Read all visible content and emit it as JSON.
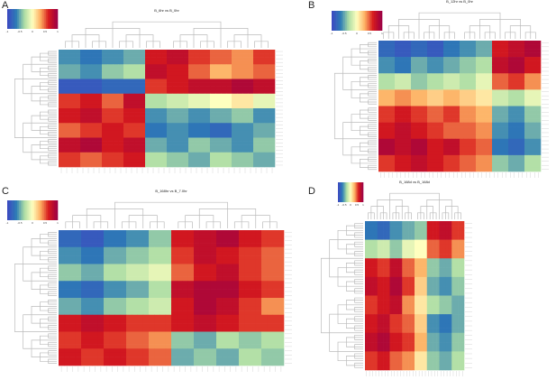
{
  "chart_data": [
    {
      "type": "heatmap",
      "panel": "A",
      "title": "B_6hr vs B_0hr",
      "color_scale": [
        "#3b4cc0",
        "#2c7bb6",
        "#abdda4",
        "#ffffbf",
        "#fdae61",
        "#d7191c",
        "#9e0142"
      ],
      "legend_ticks": [
        "-1",
        "-0.5",
        "0",
        "0.5",
        "1"
      ],
      "value_range": [
        -1,
        1
      ],
      "dendrograms": "rows-left, columns-top",
      "matrix": [
        [
          -0.6,
          -0.7,
          -0.6,
          -0.5,
          0.7,
          0.8,
          0.6,
          0.5,
          0.4,
          0.6
        ],
        [
          -0.5,
          -0.6,
          -0.4,
          -0.3,
          0.8,
          0.7,
          0.5,
          0.3,
          0.4,
          0.5
        ],
        [
          -0.9,
          -0.9,
          -0.8,
          -0.8,
          0.6,
          0.7,
          0.8,
          0.8,
          0.9,
          0.8
        ],
        [
          0.6,
          0.7,
          0.5,
          0.8,
          -0.3,
          -0.2,
          -0.1,
          0,
          0.1,
          -0.1
        ],
        [
          0.7,
          0.8,
          0.6,
          0.7,
          -0.6,
          -0.5,
          -0.6,
          -0.5,
          -0.4,
          -0.6
        ],
        [
          0.5,
          0.6,
          0.7,
          0.6,
          -0.7,
          -0.6,
          -0.7,
          -0.8,
          -0.6,
          -0.5
        ],
        [
          0.8,
          0.9,
          0.7,
          0.8,
          -0.5,
          -0.6,
          -0.4,
          -0.5,
          -0.6,
          -0.4
        ],
        [
          0.6,
          0.5,
          0.6,
          0.7,
          -0.3,
          -0.4,
          -0.5,
          -0.3,
          -0.4,
          -0.5
        ]
      ]
    },
    {
      "type": "heatmap",
      "panel": "B",
      "title": "B_12hr vs B_0hr",
      "color_scale": [
        "#3b4cc0",
        "#2c7bb6",
        "#abdda4",
        "#ffffbf",
        "#fdae61",
        "#d7191c",
        "#9e0142"
      ],
      "legend_ticks": [
        "-1",
        "-0.5",
        "0",
        "0.5",
        "1"
      ],
      "value_range": [
        -1,
        1
      ],
      "dendrograms": "rows-left, columns-top",
      "matrix": [
        [
          -0.8,
          -0.9,
          -0.8,
          -0.9,
          -0.7,
          -0.6,
          -0.5,
          0.7,
          0.8,
          0.9
        ],
        [
          -0.6,
          -0.7,
          -0.5,
          -0.6,
          -0.5,
          -0.4,
          -0.3,
          0.8,
          0.9,
          0.7
        ],
        [
          -0.3,
          -0.2,
          -0.4,
          -0.3,
          -0.2,
          -0.3,
          -0.1,
          0.5,
          0.6,
          0.4
        ],
        [
          0.3,
          0.4,
          0.3,
          0.2,
          0.3,
          0.2,
          0.1,
          -0.2,
          -0.3,
          -0.1
        ],
        [
          0.6,
          0.7,
          0.6,
          0.5,
          0.6,
          0.4,
          0.3,
          -0.5,
          -0.6,
          -0.4
        ],
        [
          0.7,
          0.8,
          0.7,
          0.6,
          0.5,
          0.5,
          0.4,
          -0.6,
          -0.7,
          -0.5
        ],
        [
          0.9,
          0.8,
          0.9,
          0.7,
          0.8,
          0.6,
          0.5,
          -0.7,
          -0.8,
          -0.6
        ],
        [
          0.6,
          0.7,
          0.8,
          0.7,
          0.6,
          0.5,
          0.4,
          -0.4,
          -0.5,
          -0.3
        ]
      ]
    },
    {
      "type": "heatmap",
      "panel": "C",
      "title": "B_168hr vs B_7.0hr",
      "color_scale": [
        "#3b4cc0",
        "#2c7bb6",
        "#abdda4",
        "#ffffbf",
        "#fdae61",
        "#d7191c",
        "#9e0142"
      ],
      "legend_ticks": [
        "-1",
        "-0.5",
        "0",
        "0.5",
        "1"
      ],
      "value_range": [
        -1,
        1
      ],
      "dendrograms": "rows-left, columns-top",
      "matrix": [
        [
          -0.8,
          -0.9,
          -0.7,
          -0.6,
          -0.4,
          0.7,
          0.8,
          0.9,
          0.7,
          0.6
        ],
        [
          -0.6,
          -0.7,
          -0.5,
          -0.4,
          -0.3,
          0.6,
          0.8,
          0.7,
          0.6,
          0.5
        ],
        [
          -0.4,
          -0.5,
          -0.3,
          -0.2,
          -0.1,
          0.5,
          0.7,
          0.8,
          0.6,
          0.5
        ],
        [
          -0.7,
          -0.8,
          -0.6,
          -0.5,
          -0.3,
          0.8,
          0.9,
          0.9,
          0.7,
          0.6
        ],
        [
          -0.5,
          -0.6,
          -0.4,
          -0.3,
          -0.2,
          0.7,
          0.9,
          0.8,
          0.6,
          0.4
        ],
        [
          0.7,
          0.8,
          0.7,
          0.6,
          0.6,
          0.7,
          0.8,
          0.7,
          0.6,
          0.6
        ],
        [
          0.6,
          0.7,
          0.6,
          0.5,
          0.4,
          -0.4,
          -0.5,
          -0.3,
          -0.4,
          -0.3
        ],
        [
          0.7,
          0.6,
          0.7,
          0.6,
          0.5,
          -0.5,
          -0.4,
          -0.5,
          -0.3,
          -0.4
        ]
      ]
    },
    {
      "type": "heatmap",
      "panel": "D",
      "title": "B_168d vs B_168d",
      "color_scale": [
        "#3b4cc0",
        "#2c7bb6",
        "#abdda4",
        "#ffffbf",
        "#fdae61",
        "#d7191c",
        "#9e0142"
      ],
      "legend_ticks": [
        "-1",
        "-0.5",
        "0",
        "0.5",
        "1"
      ],
      "value_range": [
        -1,
        1
      ],
      "dendrograms": "rows-left, columns-top",
      "matrix": [
        [
          -0.7,
          -0.8,
          -0.6,
          -0.5,
          -0.4,
          0.7,
          0.8,
          0.6
        ],
        [
          -0.3,
          -0.2,
          -0.4,
          -0.1,
          0,
          0.5,
          0.6,
          0.4
        ],
        [
          0.7,
          0.6,
          0.8,
          0.5,
          0.3,
          -0.4,
          -0.5,
          -0.3
        ],
        [
          0.8,
          0.7,
          0.9,
          0.6,
          0.2,
          -0.5,
          -0.6,
          -0.4
        ],
        [
          0.6,
          0.7,
          0.8,
          0.4,
          0.1,
          -0.3,
          -0.4,
          -0.5
        ],
        [
          0.7,
          0.8,
          0.6,
          0.5,
          0.2,
          -0.6,
          -0.7,
          -0.5
        ],
        [
          0.8,
          0.9,
          0.7,
          0.6,
          0.3,
          -0.5,
          -0.6,
          -0.4
        ],
        [
          0.6,
          0.7,
          0.5,
          0.4,
          0.1,
          -0.4,
          -0.5,
          -0.3
        ]
      ]
    }
  ]
}
